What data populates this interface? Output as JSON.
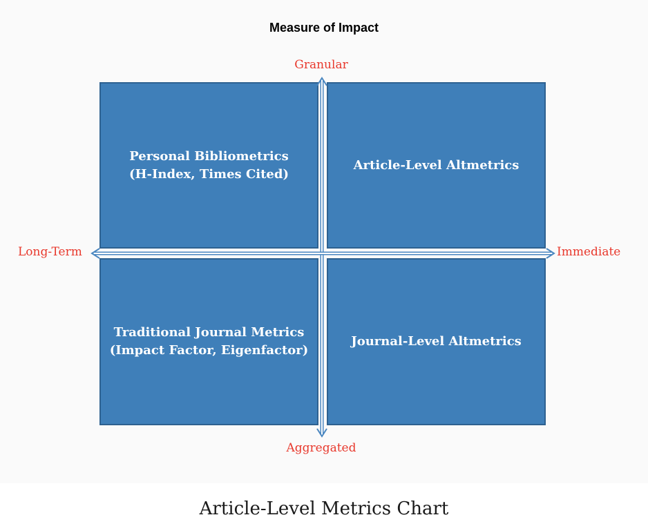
{
  "title": "Measure of Impact",
  "axes": {
    "top": "Granular",
    "bottom": "Aggregated",
    "left": "Long-Term",
    "right": "Immediate"
  },
  "quadrants": {
    "top_left": {
      "line1": "Personal Bibliometrics",
      "line2": "(H-Index, Times Cited)"
    },
    "top_right": {
      "line1": "Article-Level Altmetrics"
    },
    "bottom_left": {
      "line1": "Traditional Journal Metrics",
      "line2": "(Impact Factor, Eigenfactor)"
    },
    "bottom_right": {
      "line1": "Journal-Level Altmetrics"
    }
  },
  "caption": "Article-Level Metrics Chart",
  "colors": {
    "quadrant_fill": "#3f7fb9",
    "quadrant_border": "#2e6190",
    "axis_label": "#e8382c",
    "arrow": "#4b87c0"
  }
}
